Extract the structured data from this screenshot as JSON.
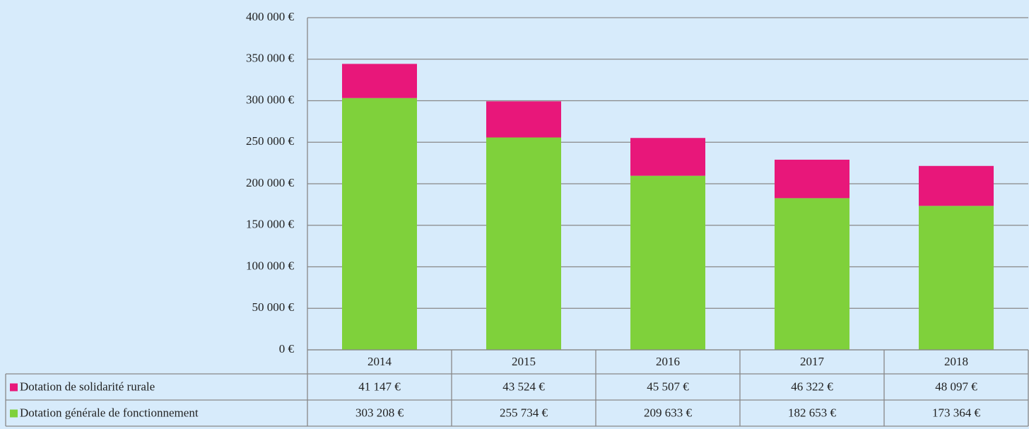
{
  "chart_data": {
    "type": "bar",
    "stacked": true,
    "categories": [
      "2014",
      "2015",
      "2016",
      "2017",
      "2018"
    ],
    "series": [
      {
        "name": "Dotation de solidarité rurale",
        "color": "#e8177a",
        "values": [
          41147,
          43524,
          45507,
          46322,
          48097
        ],
        "value_labels": [
          "41 147 €",
          "43 524 €",
          "45 507 €",
          "46 322 €",
          "48 097 €"
        ]
      },
      {
        "name": "Dotation générale de fonctionnement",
        "color": "#7fd13b",
        "values": [
          303208,
          255734,
          209633,
          182653,
          173364
        ],
        "value_labels": [
          "303 208 €",
          "255 734 €",
          "209 633 €",
          "182 653 €",
          "173 364 €"
        ]
      }
    ],
    "ylim": [
      0,
      400000
    ],
    "yticks": [
      {
        "value": 0,
        "label": "0 €"
      },
      {
        "value": 50000,
        "label": "50 000 €"
      },
      {
        "value": 100000,
        "label": "100 000 €"
      },
      {
        "value": 150000,
        "label": "150 000 €"
      },
      {
        "value": 200000,
        "label": "200 000 €"
      },
      {
        "value": 250000,
        "label": "250 000 €"
      },
      {
        "value": 300000,
        "label": "300 000 €"
      },
      {
        "value": 350000,
        "label": "350 000 €"
      },
      {
        "value": 400000,
        "label": "400 000 €"
      }
    ],
    "grid": true
  }
}
